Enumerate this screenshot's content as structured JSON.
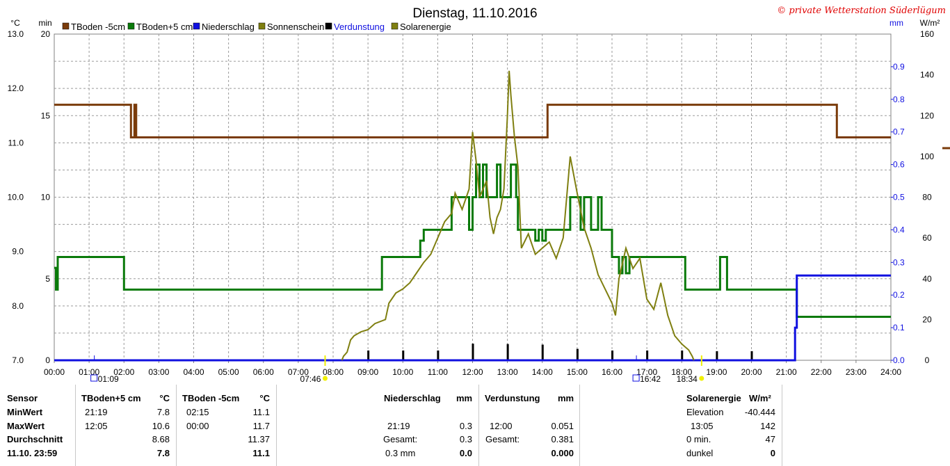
{
  "title": "Dienstag, 11.10.2016",
  "copyright": "© private Wetterstation Süderlügum",
  "colors": {
    "tboden_minus5": "#7a3b0a",
    "tboden_plus5": "#0a7a0a",
    "niederschlag": "#1010e0",
    "sonnenschein": "#7f7f10",
    "verdunstung": "#000000",
    "solarenergie": "#7f7f10",
    "sun_marker": "#f0f000"
  },
  "legend": [
    {
      "label": "TBoden -5cm",
      "color": "#7a3b0a"
    },
    {
      "label": "TBoden+5 cm",
      "color": "#0a7a0a"
    },
    {
      "label": "Niederschlag",
      "color": "#1010e0"
    },
    {
      "label": "Sonnenschein",
      "color": "#7f7f10"
    },
    {
      "label": "Verdunstung",
      "color": "#000000"
    },
    {
      "label": "Solarenergie",
      "color": "#7f7f10"
    }
  ],
  "axis_units": {
    "left1": "°C",
    "left2": "min",
    "right1": "mm",
    "right2": "W/m²"
  },
  "chart_data": {
    "type": "line",
    "x_range": [
      "00:00",
      "24:00"
    ],
    "x_ticks": [
      "00:00",
      "01:00",
      "02:00",
      "03:00",
      "04:00",
      "05:00",
      "06:00",
      "07:00",
      "08:00",
      "09:00",
      "10:00",
      "11:00",
      "12:00",
      "13:00",
      "14:00",
      "15:00",
      "16:00",
      "17:00",
      "18:00",
      "19:00",
      "20:00",
      "21:00",
      "22:00",
      "23:00",
      "24:00"
    ],
    "y_temp_ticks": [
      "7.0",
      "8.0",
      "9.0",
      "10.0",
      "11.0",
      "12.0",
      "13.0"
    ],
    "y_temp_range": [
      7,
      13
    ],
    "y_min_ticks": [
      "0",
      "5",
      "10",
      "15",
      "20"
    ],
    "y_min_range": [
      0,
      20
    ],
    "y_mm_ticks": [
      "0.0",
      "0.1",
      "0.2",
      "0.3",
      "0.4",
      "0.5",
      "0.6",
      "0.7",
      "0.8",
      "0.9"
    ],
    "y_mm_range": [
      0,
      1
    ],
    "y_wm2_ticks": [
      "0",
      "20",
      "40",
      "60",
      "80",
      "100",
      "120",
      "140",
      "160"
    ],
    "y_wm2_range": [
      0,
      160
    ],
    "series": [
      {
        "name": "TBoden -5cm",
        "axis": "temp",
        "points": [
          [
            0,
            11.7
          ],
          [
            2.2,
            11.7
          ],
          [
            2.2,
            11.1
          ],
          [
            2.3,
            11.1
          ],
          [
            2.3,
            11.7
          ],
          [
            2.35,
            11.7
          ],
          [
            2.35,
            11.1
          ],
          [
            14.15,
            11.1
          ],
          [
            14.15,
            11.7
          ],
          [
            22.45,
            11.7
          ],
          [
            22.45,
            11.1
          ],
          [
            24,
            11.1
          ]
        ]
      },
      {
        "name": "TBoden+5 cm",
        "axis": "temp",
        "points": [
          [
            0,
            8.7
          ],
          [
            0.05,
            8.7
          ],
          [
            0.05,
            8.3
          ],
          [
            0.1,
            8.3
          ],
          [
            0.1,
            8.9
          ],
          [
            2.0,
            8.9
          ],
          [
            2.0,
            8.3
          ],
          [
            9.4,
            8.3
          ],
          [
            9.4,
            8.9
          ],
          [
            10.5,
            8.9
          ],
          [
            10.5,
            9.2
          ],
          [
            10.6,
            9.2
          ],
          [
            10.6,
            9.4
          ],
          [
            11.4,
            9.4
          ],
          [
            11.4,
            10.0
          ],
          [
            11.9,
            10.0
          ],
          [
            11.9,
            9.4
          ],
          [
            12.0,
            9.4
          ],
          [
            12.0,
            10.0
          ],
          [
            12.1,
            10.0
          ],
          [
            12.1,
            10.6
          ],
          [
            12.2,
            10.6
          ],
          [
            12.2,
            10.0
          ],
          [
            12.3,
            10.0
          ],
          [
            12.3,
            10.6
          ],
          [
            12.4,
            10.6
          ],
          [
            12.4,
            10.0
          ],
          [
            12.7,
            10.0
          ],
          [
            12.7,
            10.6
          ],
          [
            12.8,
            10.6
          ],
          [
            12.8,
            10.0
          ],
          [
            13.1,
            10.0
          ],
          [
            13.1,
            10.6
          ],
          [
            13.25,
            10.6
          ],
          [
            13.25,
            10.0
          ],
          [
            13.3,
            10.0
          ],
          [
            13.3,
            9.4
          ],
          [
            13.8,
            9.4
          ],
          [
            13.8,
            9.2
          ],
          [
            13.9,
            9.2
          ],
          [
            13.9,
            9.4
          ],
          [
            14.0,
            9.4
          ],
          [
            14.0,
            9.2
          ],
          [
            14.1,
            9.2
          ],
          [
            14.1,
            9.4
          ],
          [
            14.8,
            9.4
          ],
          [
            14.8,
            10.0
          ],
          [
            15.1,
            10.0
          ],
          [
            15.1,
            9.4
          ],
          [
            15.2,
            9.4
          ],
          [
            15.2,
            10.0
          ],
          [
            15.4,
            10.0
          ],
          [
            15.4,
            9.4
          ],
          [
            15.6,
            9.4
          ],
          [
            15.6,
            10.0
          ],
          [
            15.7,
            10.0
          ],
          [
            15.7,
            9.4
          ],
          [
            16.0,
            9.4
          ],
          [
            16.0,
            8.9
          ],
          [
            16.2,
            8.9
          ],
          [
            16.2,
            8.6
          ],
          [
            16.3,
            8.6
          ],
          [
            16.3,
            8.9
          ],
          [
            16.4,
            8.9
          ],
          [
            16.4,
            8.6
          ],
          [
            16.5,
            8.6
          ],
          [
            16.5,
            8.9
          ],
          [
            18.1,
            8.9
          ],
          [
            18.1,
            8.3
          ],
          [
            19.1,
            8.3
          ],
          [
            19.1,
            8.9
          ],
          [
            19.3,
            8.9
          ],
          [
            19.3,
            8.3
          ],
          [
            21.3,
            8.3
          ],
          [
            21.3,
            7.8
          ],
          [
            24,
            7.8
          ]
        ]
      },
      {
        "name": "Niederschlag",
        "axis": "mm",
        "points": [
          [
            0,
            0
          ],
          [
            21.25,
            0
          ],
          [
            21.25,
            0.1
          ],
          [
            21.3,
            0.1
          ],
          [
            21.3,
            0.26
          ],
          [
            24,
            0.26
          ]
        ]
      },
      {
        "name": "Solarenergie",
        "axis": "wm2",
        "points": [
          [
            8.25,
            0
          ],
          [
            8.3,
            2
          ],
          [
            8.4,
            4
          ],
          [
            8.5,
            10
          ],
          [
            8.6,
            12
          ],
          [
            8.8,
            14
          ],
          [
            9.0,
            15
          ],
          [
            9.2,
            18
          ],
          [
            9.5,
            20
          ],
          [
            9.6,
            28
          ],
          [
            9.8,
            33
          ],
          [
            10.0,
            35
          ],
          [
            10.2,
            38
          ],
          [
            10.4,
            43
          ],
          [
            10.6,
            48
          ],
          [
            10.8,
            52
          ],
          [
            11.0,
            60
          ],
          [
            11.2,
            68
          ],
          [
            11.4,
            72
          ],
          [
            11.5,
            82
          ],
          [
            11.7,
            74
          ],
          [
            11.9,
            84
          ],
          [
            12.0,
            112
          ],
          [
            12.1,
            98
          ],
          [
            12.2,
            80
          ],
          [
            12.4,
            88
          ],
          [
            12.5,
            70
          ],
          [
            12.6,
            62
          ],
          [
            12.7,
            70
          ],
          [
            12.8,
            74
          ],
          [
            12.9,
            84
          ],
          [
            13.0,
            120
          ],
          [
            13.05,
            142
          ],
          [
            13.1,
            130
          ],
          [
            13.2,
            110
          ],
          [
            13.3,
            95
          ],
          [
            13.4,
            55
          ],
          [
            13.6,
            62
          ],
          [
            13.8,
            52
          ],
          [
            14.0,
            55
          ],
          [
            14.2,
            58
          ],
          [
            14.4,
            50
          ],
          [
            14.6,
            60
          ],
          [
            14.8,
            100
          ],
          [
            15.0,
            82
          ],
          [
            15.2,
            65
          ],
          [
            15.4,
            55
          ],
          [
            15.6,
            42
          ],
          [
            15.8,
            35
          ],
          [
            16.0,
            28
          ],
          [
            16.1,
            22
          ],
          [
            16.2,
            40
          ],
          [
            16.4,
            55
          ],
          [
            16.6,
            45
          ],
          [
            16.8,
            50
          ],
          [
            17.0,
            30
          ],
          [
            17.2,
            25
          ],
          [
            17.4,
            38
          ],
          [
            17.6,
            22
          ],
          [
            17.8,
            12
          ],
          [
            18.0,
            8
          ],
          [
            18.2,
            5
          ],
          [
            18.3,
            2
          ],
          [
            18.35,
            0
          ]
        ]
      }
    ],
    "verdunstung_bars": [
      {
        "t": 9,
        "mm": 0.03
      },
      {
        "t": 10,
        "mm": 0.03
      },
      {
        "t": 11,
        "mm": 0.03
      },
      {
        "t": 12,
        "mm": 0.051
      },
      {
        "t": 13,
        "mm": 0.05
      },
      {
        "t": 14,
        "mm": 0.048
      },
      {
        "t": 15,
        "mm": 0.035
      },
      {
        "t": 16,
        "mm": 0.03
      },
      {
        "t": 17,
        "mm": 0.03
      },
      {
        "t": 18,
        "mm": 0.03
      },
      {
        "t": 19,
        "mm": 0.028
      },
      {
        "t": 20,
        "mm": 0.028
      }
    ],
    "time_markers": [
      {
        "t": 1.15,
        "label": "01:09",
        "kind": "moon"
      },
      {
        "t": 7.77,
        "label": "07:46",
        "kind": "sun"
      },
      {
        "t": 16.7,
        "label": "16:42",
        "kind": "moon"
      },
      {
        "t": 18.57,
        "label": "18:34",
        "kind": "sun"
      }
    ]
  },
  "stats": {
    "sensor_header": "Sensor",
    "row_labels": [
      "MinWert",
      "MaxWert",
      "Durchschnitt",
      "11.10. 23:59"
    ],
    "col1": {
      "title": "TBoden+5 cm",
      "unit": "°C",
      "times": [
        "21:19",
        "12:05"
      ],
      "values": [
        "7.8",
        "10.6",
        "8.68",
        "7.8"
      ]
    },
    "col2": {
      "title": "TBoden -5cm",
      "unit": "°C",
      "times": [
        "02:15",
        "00:00"
      ],
      "values": [
        "11.1",
        "11.7",
        "11.37",
        "11.1"
      ]
    },
    "col3": {
      "title": "Niederschlag",
      "unit": "mm",
      "time": "21:19",
      "value": "0.3",
      "gesamt_label": "Gesamt:",
      "gesamt": "0.3",
      "last_label": "0.3 mm",
      "last_value": "0.0"
    },
    "col4": {
      "title": "Verdunstung",
      "unit": "mm",
      "time": "12:00",
      "value": "0.051",
      "gesamt_label": "Gesamt:",
      "gesamt": "0.381",
      "last_value": "0.000"
    },
    "col5": {
      "title": "Solarenergie",
      "unit": "W/m²",
      "elev_label": "Elevation",
      "elev": "-40.444",
      "time": "13:05",
      "value": "142",
      "min_label": "0 min.",
      "min_value": "47",
      "dunkel_label": "dunkel",
      "dunkel_value": "0"
    }
  }
}
